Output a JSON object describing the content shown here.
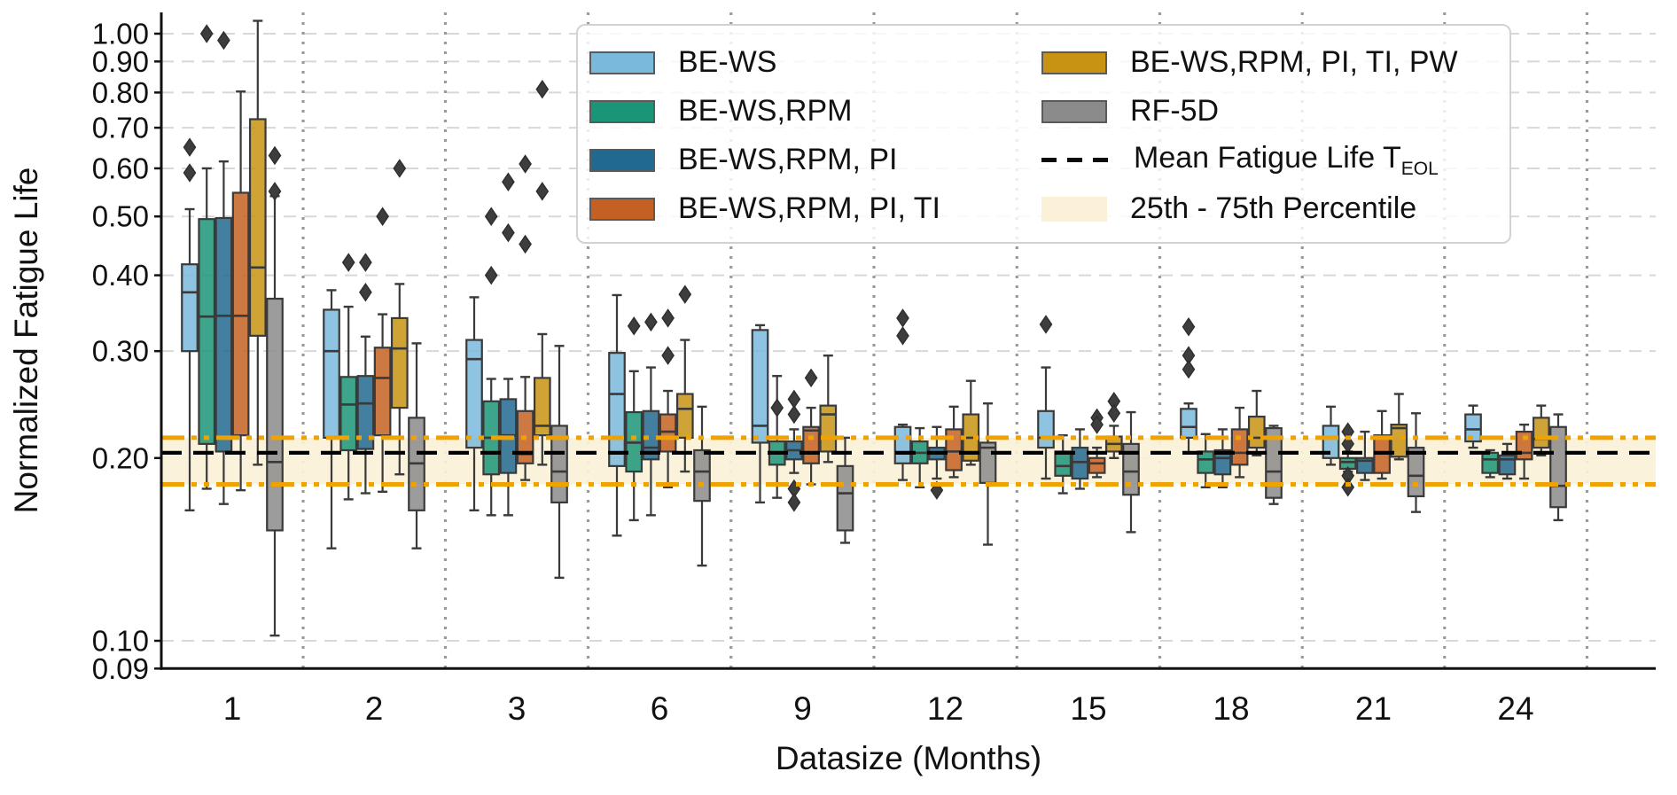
{
  "chart_data": {
    "type": "boxplot",
    "title": "",
    "xlabel": "Datasize (Months)",
    "ylabel": "Normalized Fatigue Life",
    "y_scale": "log",
    "ylim": [
      0.09,
      1.084
    ],
    "grid": "horizontal-dashed",
    "legend_position": "upper center, two columns",
    "y_ticks": [
      {
        "label": "1.00",
        "value": 1.0
      },
      {
        "label": "0.90",
        "value": 0.9
      },
      {
        "label": "0.80",
        "value": 0.8
      },
      {
        "label": "0.70",
        "value": 0.7
      },
      {
        "label": "0.60",
        "value": 0.6
      },
      {
        "label": "0.50",
        "value": 0.5
      },
      {
        "label": "0.40",
        "value": 0.4
      },
      {
        "label": "0.30",
        "value": 0.3
      },
      {
        "label": "0.20",
        "value": 0.2
      },
      {
        "label": "0.10",
        "value": 0.1
      },
      {
        "label": "0.09",
        "value": 0.09
      }
    ],
    "grid_values": [
      1.0,
      0.9,
      0.8,
      0.7,
      0.6,
      0.5,
      0.4,
      0.3,
      0.2,
      0.1
    ],
    "categories": [
      "1",
      "2",
      "3",
      "6",
      "9",
      "12",
      "15",
      "18",
      "21",
      "24"
    ],
    "mean_line": {
      "label": "Mean Fatigue Life T",
      "sub": "EOL",
      "value": 0.204,
      "color": "#000000"
    },
    "percentile_band": {
      "label": "25th - 75th Percentile",
      "low": 0.181,
      "high": 0.216,
      "fill": "#FBF1D9",
      "edge": "#F0A202"
    },
    "style": {
      "box_edge": "#3A3A3A",
      "flier": "#3D3D3D",
      "grid": "#D8D8D8",
      "separator": "#9A9A9A",
      "spine": "#111111"
    },
    "series": [
      {
        "name": "BE-WS",
        "color": "#7AB8DC",
        "boxes": [
          {
            "lo": 0.164,
            "q1": 0.3,
            "me": 0.375,
            "q3": 0.417,
            "hi": 0.514,
            "out": [
              0.65,
              0.59
            ]
          },
          {
            "lo": 0.142,
            "q1": 0.216,
            "me": 0.3,
            "q3": 0.351,
            "hi": 0.378,
            "out": []
          },
          {
            "lo": 0.164,
            "q1": 0.208,
            "me": 0.291,
            "q3": 0.313,
            "hi": 0.368,
            "out": []
          },
          {
            "lo": 0.149,
            "q1": 0.194,
            "me": 0.255,
            "q3": 0.298,
            "hi": 0.371,
            "out": []
          },
          {
            "lo": 0.169,
            "q1": 0.212,
            "me": 0.226,
            "q3": 0.325,
            "hi": 0.331,
            "out": []
          },
          {
            "lo": 0.184,
            "q1": 0.196,
            "me": 0.204,
            "q3": 0.225,
            "hi": 0.227,
            "out": [
              0.34,
              0.318
            ]
          },
          {
            "lo": 0.185,
            "q1": 0.208,
            "me": 0.216,
            "q3": 0.239,
            "hi": 0.282,
            "out": [
              0.332
            ]
          },
          {
            "lo": 0.204,
            "q1": 0.216,
            "me": 0.225,
            "q3": 0.241,
            "hi": 0.246,
            "out": [
              0.329,
              0.295,
              0.28
            ]
          },
          {
            "lo": 0.195,
            "q1": 0.2,
            "me": 0.216,
            "q3": 0.226,
            "hi": 0.243,
            "out": []
          },
          {
            "lo": 0.208,
            "q1": 0.213,
            "me": 0.223,
            "q3": 0.236,
            "hi": 0.244,
            "out": []
          }
        ]
      },
      {
        "name": "BE-WS,RPM",
        "color": "#1B9577",
        "boxes": [
          {
            "lo": 0.178,
            "q1": 0.211,
            "me": 0.342,
            "q3": 0.495,
            "hi": 0.6,
            "out": [
              1.0
            ]
          },
          {
            "lo": 0.171,
            "q1": 0.206,
            "me": 0.245,
            "q3": 0.272,
            "hi": 0.355,
            "out": [
              0.42
            ]
          },
          {
            "lo": 0.161,
            "q1": 0.188,
            "me": 0.216,
            "q3": 0.248,
            "hi": 0.27,
            "out": [
              0.5,
              0.4
            ]
          },
          {
            "lo": 0.158,
            "q1": 0.19,
            "me": 0.212,
            "q3": 0.238,
            "hi": 0.278,
            "out": [
              0.33
            ]
          },
          {
            "lo": 0.172,
            "q1": 0.195,
            "me": 0.204,
            "q3": 0.213,
            "hi": 0.273,
            "out": [
              0.242
            ]
          },
          {
            "lo": 0.179,
            "q1": 0.196,
            "me": 0.204,
            "q3": 0.213,
            "hi": 0.224,
            "out": []
          },
          {
            "lo": 0.175,
            "q1": 0.187,
            "me": 0.194,
            "q3": 0.205,
            "hi": 0.218,
            "out": []
          },
          {
            "lo": 0.179,
            "q1": 0.189,
            "me": 0.199,
            "q3": 0.205,
            "hi": 0.219,
            "out": []
          },
          {
            "lo": 0.19,
            "q1": 0.192,
            "me": 0.197,
            "q3": 0.2,
            "hi": 0.205,
            "out": [
              0.221,
              0.211,
              0.187,
              0.179
            ]
          },
          {
            "lo": 0.186,
            "q1": 0.189,
            "me": 0.199,
            "q3": 0.204,
            "hi": 0.206,
            "out": []
          }
        ]
      },
      {
        "name": "BE-WS,RPM, PI",
        "color": "#21698F",
        "boxes": [
          {
            "lo": 0.168,
            "q1": 0.205,
            "me": 0.343,
            "q3": 0.497,
            "hi": 0.616,
            "out": [
              0.975
            ]
          },
          {
            "lo": 0.175,
            "q1": 0.207,
            "me": 0.246,
            "q3": 0.273,
            "hi": 0.317,
            "out": [
              0.42,
              0.375
            ]
          },
          {
            "lo": 0.161,
            "q1": 0.189,
            "me": 0.218,
            "q3": 0.25,
            "hi": 0.27,
            "out": [
              0.57,
              0.47
            ]
          },
          {
            "lo": 0.161,
            "q1": 0.199,
            "me": 0.208,
            "q3": 0.239,
            "hi": 0.282,
            "out": [
              0.335
            ]
          },
          {
            "lo": 0.189,
            "q1": 0.199,
            "me": 0.206,
            "q3": 0.213,
            "hi": 0.223,
            "out": [
              0.25,
              0.236,
              0.178,
              0.169
            ]
          },
          {
            "lo": 0.185,
            "q1": 0.199,
            "me": 0.204,
            "q3": 0.208,
            "hi": 0.225,
            "out": [
              0.177
            ]
          },
          {
            "lo": 0.178,
            "q1": 0.185,
            "me": 0.197,
            "q3": 0.208,
            "hi": 0.223,
            "out": []
          },
          {
            "lo": 0.179,
            "q1": 0.188,
            "me": 0.2,
            "q3": 0.206,
            "hi": 0.223,
            "out": []
          },
          {
            "lo": 0.184,
            "q1": 0.189,
            "me": 0.198,
            "q3": 0.2,
            "hi": 0.221,
            "out": []
          },
          {
            "lo": 0.185,
            "q1": 0.188,
            "me": 0.199,
            "q3": 0.202,
            "hi": 0.211,
            "out": []
          }
        ]
      },
      {
        "name": "BE-WS,RPM, PI, TI",
        "color": "#C46122",
        "boxes": [
          {
            "lo": 0.177,
            "q1": 0.218,
            "me": 0.343,
            "q3": 0.547,
            "hi": 0.803,
            "out": []
          },
          {
            "lo": 0.176,
            "q1": 0.218,
            "me": 0.271,
            "q3": 0.304,
            "hi": 0.345,
            "out": [
              0.5
            ]
          },
          {
            "lo": 0.184,
            "q1": 0.196,
            "me": 0.203,
            "q3": 0.239,
            "hi": 0.272,
            "out": [
              0.61,
              0.45
            ]
          },
          {
            "lo": 0.179,
            "q1": 0.205,
            "me": 0.221,
            "q3": 0.236,
            "hi": 0.258,
            "out": [
              0.34,
              0.295
            ]
          },
          {
            "lo": 0.181,
            "q1": 0.196,
            "me": 0.222,
            "q3": 0.225,
            "hi": 0.242,
            "out": [
              0.271
            ]
          },
          {
            "lo": 0.186,
            "q1": 0.191,
            "me": 0.205,
            "q3": 0.223,
            "hi": 0.243,
            "out": []
          },
          {
            "lo": 0.186,
            "q1": 0.189,
            "me": 0.196,
            "q3": 0.2,
            "hi": 0.208,
            "out": [
              0.233,
              0.227
            ]
          },
          {
            "lo": 0.186,
            "q1": 0.195,
            "me": 0.204,
            "q3": 0.223,
            "hi": 0.242,
            "out": []
          },
          {
            "lo": 0.185,
            "q1": 0.189,
            "me": 0.204,
            "q3": 0.218,
            "hi": 0.239,
            "out": []
          },
          {
            "lo": 0.185,
            "q1": 0.199,
            "me": 0.204,
            "q3": 0.221,
            "hi": 0.227,
            "out": []
          }
        ]
      },
      {
        "name": "BE-WS,RPM, PI, TI, PW",
        "color": "#C89313",
        "boxes": [
          {
            "lo": 0.195,
            "q1": 0.318,
            "me": 0.412,
            "q3": 0.723,
            "hi": 1.05,
            "out": []
          },
          {
            "lo": 0.188,
            "q1": 0.242,
            "me": 0.303,
            "q3": 0.34,
            "hi": 0.387,
            "out": [
              0.6
            ]
          },
          {
            "lo": 0.195,
            "q1": 0.218,
            "me": 0.226,
            "q3": 0.271,
            "hi": 0.32,
            "out": [
              0.81,
              0.55
            ]
          },
          {
            "lo": 0.19,
            "q1": 0.216,
            "me": 0.241,
            "q3": 0.255,
            "hi": 0.313,
            "out": [
              0.372
            ]
          },
          {
            "lo": 0.197,
            "q1": 0.205,
            "me": 0.236,
            "q3": 0.244,
            "hi": 0.295,
            "out": []
          },
          {
            "lo": 0.195,
            "q1": 0.198,
            "me": 0.216,
            "q3": 0.236,
            "hi": 0.268,
            "out": []
          },
          {
            "lo": 0.2,
            "q1": 0.205,
            "me": 0.211,
            "q3": 0.217,
            "hi": 0.226,
            "out": [
              0.248,
              0.237
            ]
          },
          {
            "lo": 0.202,
            "q1": 0.208,
            "me": 0.216,
            "q3": 0.234,
            "hi": 0.258,
            "out": []
          },
          {
            "lo": 0.199,
            "q1": 0.201,
            "me": 0.224,
            "q3": 0.227,
            "hi": 0.255,
            "out": []
          },
          {
            "lo": 0.202,
            "q1": 0.208,
            "me": 0.215,
            "q3": 0.233,
            "hi": 0.244,
            "out": []
          }
        ]
      },
      {
        "name": "RF-5D",
        "color": "#8B8B8B",
        "boxes": [
          {
            "lo": 0.102,
            "q1": 0.152,
            "me": 0.197,
            "q3": 0.366,
            "hi": 0.54,
            "out": [
              0.63,
              0.55
            ]
          },
          {
            "lo": 0.142,
            "q1": 0.164,
            "me": 0.196,
            "q3": 0.233,
            "hi": 0.309,
            "out": []
          },
          {
            "lo": 0.127,
            "q1": 0.169,
            "me": 0.19,
            "q3": 0.226,
            "hi": 0.306,
            "out": []
          },
          {
            "lo": 0.133,
            "q1": 0.17,
            "me": 0.19,
            "q3": 0.206,
            "hi": 0.243,
            "out": []
          },
          {
            "lo": 0.145,
            "q1": 0.152,
            "me": 0.175,
            "q3": 0.194,
            "hi": 0.216,
            "out": []
          },
          {
            "lo": 0.144,
            "q1": 0.182,
            "me": 0.208,
            "q3": 0.212,
            "hi": 0.246,
            "out": []
          },
          {
            "lo": 0.151,
            "q1": 0.174,
            "me": 0.19,
            "q3": 0.211,
            "hi": 0.238,
            "out": []
          },
          {
            "lo": 0.168,
            "q1": 0.172,
            "me": 0.19,
            "q3": 0.224,
            "hi": 0.226,
            "out": []
          },
          {
            "lo": 0.163,
            "q1": 0.173,
            "me": 0.187,
            "q3": 0.208,
            "hi": 0.237,
            "out": []
          },
          {
            "lo": 0.158,
            "q1": 0.166,
            "me": 0.18,
            "q3": 0.225,
            "hi": 0.236,
            "out": []
          }
        ]
      }
    ]
  }
}
